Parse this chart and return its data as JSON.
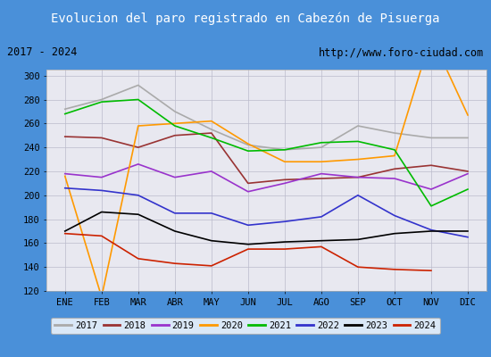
{
  "title": "Evolucion del paro registrado en Cabezón de Pisuerga",
  "subtitle_left": "2017 - 2024",
  "subtitle_right": "http://www.foro-ciudad.com",
  "title_bg_color": "#4a90d9",
  "title_text_color": "#ffffff",
  "plot_bg_color": "#e8e8f0",
  "months": [
    "ENE",
    "FEB",
    "MAR",
    "ABR",
    "MAY",
    "JUN",
    "JUL",
    "AGO",
    "SEP",
    "OCT",
    "NOV",
    "DIC"
  ],
  "ylim": [
    120,
    305
  ],
  "yticks": [
    120,
    140,
    160,
    180,
    200,
    220,
    240,
    260,
    280,
    300
  ],
  "series": {
    "2017": {
      "color": "#aaaaaa",
      "values": [
        272,
        280,
        292,
        270,
        255,
        242,
        238,
        240,
        258,
        252,
        248,
        248
      ]
    },
    "2018": {
      "color": "#993333",
      "values": [
        249,
        248,
        240,
        250,
        252,
        210,
        213,
        214,
        215,
        222,
        225,
        220
      ]
    },
    "2019": {
      "color": "#9933cc",
      "values": [
        218,
        215,
        226,
        215,
        220,
        203,
        210,
        218,
        215,
        214,
        205,
        218
      ]
    },
    "2020": {
      "color": "#ff9900",
      "values": [
        216,
        115,
        258,
        260,
        262,
        243,
        228,
        228,
        230,
        233,
        333,
        267
      ]
    },
    "2021": {
      "color": "#00bb00",
      "values": [
        268,
        278,
        280,
        258,
        248,
        237,
        238,
        244,
        245,
        238,
        191,
        205
      ]
    },
    "2022": {
      "color": "#3333cc",
      "values": [
        206,
        204,
        200,
        185,
        185,
        175,
        178,
        182,
        200,
        183,
        171,
        165
      ]
    },
    "2023": {
      "color": "#000000",
      "values": [
        170,
        186,
        184,
        170,
        162,
        159,
        161,
        162,
        163,
        168,
        170,
        170
      ]
    },
    "2024": {
      "color": "#cc2200",
      "values": [
        168,
        166,
        147,
        143,
        141,
        155,
        155,
        157,
        140,
        138,
        137,
        null
      ]
    }
  }
}
